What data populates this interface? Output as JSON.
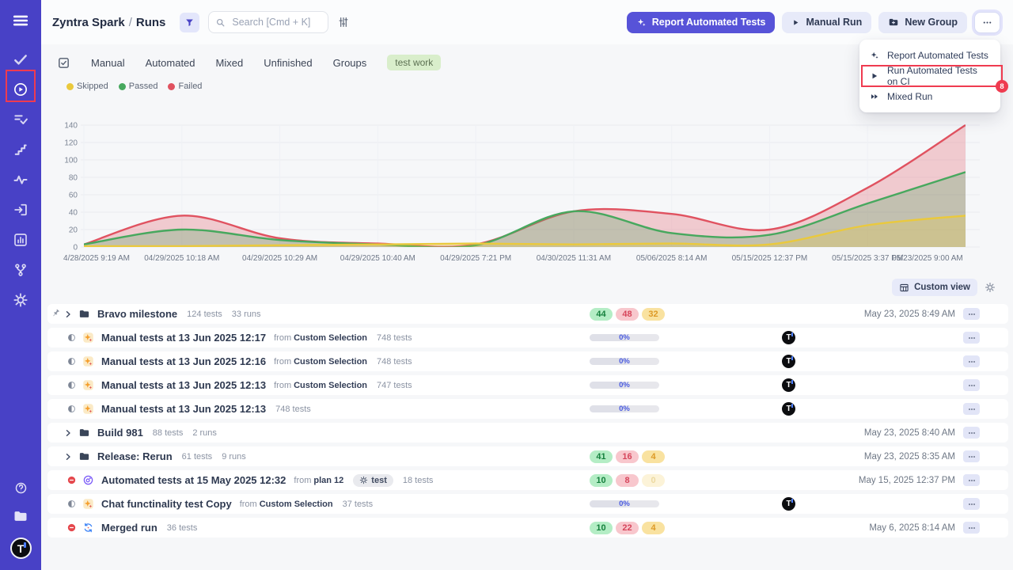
{
  "colors": {
    "sidebar": "#4841c6",
    "accent": "#5753d8",
    "annotation": "#ef3b50",
    "passed": "#47a85e",
    "failed": "#e05260",
    "skipped": "#eac93d"
  },
  "sidebar": {
    "avatar": "T",
    "items": [
      {
        "id": "tests",
        "icon": "check-icon"
      },
      {
        "id": "runs",
        "icon": "play-circle-icon",
        "active": true,
        "annotated": true
      },
      {
        "id": "plans",
        "icon": "list-check-icon"
      },
      {
        "id": "milestones",
        "icon": "stairs-icon"
      },
      {
        "id": "pulse",
        "icon": "activity-icon"
      },
      {
        "id": "imports",
        "icon": "import-icon"
      },
      {
        "id": "analytics",
        "icon": "bar-chart-icon"
      },
      {
        "id": "traceability",
        "icon": "branch-icon"
      },
      {
        "id": "settings",
        "icon": "gear-icon"
      }
    ]
  },
  "header": {
    "project": "Zyntra Spark",
    "separator": "/",
    "page": "Runs",
    "search_placeholder": "Search [Cmd + K]",
    "report_button": "Report Automated Tests",
    "manual_run_button": "Manual Run",
    "new_group_button": "New Group"
  },
  "menu": {
    "items": [
      {
        "label": "Report Automated Tests",
        "icon": "sparkle-icon"
      },
      {
        "label": "Run Automated Tests on CI",
        "icon": "play-icon",
        "annotated": true,
        "annotation_badge": "8"
      },
      {
        "label": "Mixed Run",
        "icon": "fast-forward-icon"
      }
    ]
  },
  "tabs": {
    "items": [
      "Manual",
      "Automated",
      "Mixed",
      "Unfinished",
      "Groups"
    ],
    "active_filter": "test work"
  },
  "legend": [
    {
      "label": "Skipped",
      "color": "#eac93d"
    },
    {
      "label": "Passed",
      "color": "#47a85e"
    },
    {
      "label": "Failed",
      "color": "#e05260"
    }
  ],
  "chart_data": {
    "type": "area",
    "title": "",
    "xlabel": "",
    "ylabel": "",
    "ylim": [
      0,
      140
    ],
    "yticks": [
      0,
      20,
      40,
      60,
      80,
      100,
      120,
      140
    ],
    "grid": true,
    "legend_position": "top-left",
    "x_labels": [
      "4/28/2025 9:19 AM",
      "04/29/2025 10:18 AM",
      "04/29/2025 10:29 AM",
      "04/29/2025 10:40 AM",
      "04/29/2025 7:21 PM",
      "04/30/2025 11:31 AM",
      "05/06/2025 8:14 AM",
      "05/15/2025 12:37 PM",
      "05/15/2025 3:37 PM",
      "05/23/2025 9:00 AM"
    ],
    "series": [
      {
        "name": "Failed",
        "color": "#e05260",
        "values": [
          3,
          36,
          10,
          4,
          3,
          41,
          38,
          20,
          68,
          140
        ]
      },
      {
        "name": "Passed",
        "color": "#47a85e",
        "values": [
          3,
          20,
          8,
          3,
          2,
          41,
          16,
          14,
          50,
          86
        ]
      },
      {
        "name": "Skipped",
        "color": "#eac93d",
        "values": [
          1,
          1,
          2,
          3,
          4,
          3,
          4,
          3,
          25,
          36
        ]
      }
    ]
  },
  "view_bar": {
    "custom_view_label": "Custom view"
  },
  "table": {
    "rows": [
      {
        "type": "group",
        "pinned": true,
        "name": "Bravo milestone",
        "meta": [
          "124 tests",
          "33 runs"
        ],
        "results": [
          {
            "kind": "passed",
            "value": "44"
          },
          {
            "kind": "failed",
            "value": "48"
          },
          {
            "kind": "skipped",
            "value": "32"
          }
        ],
        "date": "May 23, 2025 8:49 AM"
      },
      {
        "type": "run",
        "status_icon": "globe-icon",
        "type_icon": "manual-run-icon",
        "name": "Manual tests at 13 Jun 2025 12:17",
        "from_label": "from",
        "from_value": "Custom Selection",
        "tests": "748 tests",
        "progress": "0%",
        "assignee": "T"
      },
      {
        "type": "run",
        "status_icon": "globe-icon",
        "type_icon": "manual-run-icon",
        "name": "Manual tests at 13 Jun 2025 12:16",
        "from_label": "from",
        "from_value": "Custom Selection",
        "tests": "748 tests",
        "progress": "0%",
        "assignee": "T"
      },
      {
        "type": "run",
        "status_icon": "globe-icon",
        "type_icon": "manual-run-icon",
        "name": "Manual tests at 13 Jun 2025 12:13",
        "from_label": "from",
        "from_value": "Custom Selection",
        "tests": "747 tests",
        "progress": "0%",
        "assignee": "T"
      },
      {
        "type": "run",
        "status_icon": "globe-icon",
        "type_icon": "manual-run-icon",
        "name": "Manual tests at 13 Jun 2025 12:13",
        "tests": "748 tests",
        "progress": "0%",
        "assignee": "T"
      },
      {
        "type": "group",
        "name": "Build 981",
        "meta": [
          "88 tests",
          "2 runs"
        ],
        "date": "May 23, 2025 8:40 AM"
      },
      {
        "type": "group",
        "name": "Release: Rerun",
        "meta": [
          "61 tests",
          "9 runs"
        ],
        "results": [
          {
            "kind": "passed",
            "value": "41"
          },
          {
            "kind": "failed",
            "value": "16"
          },
          {
            "kind": "skipped",
            "value": "4"
          }
        ],
        "date": "May 23, 2025 8:35 AM"
      },
      {
        "type": "run",
        "status_icon": "blocked-icon",
        "type_icon": "automated-run-icon",
        "name": "Automated tests at 15 May 2025 12:32",
        "from_label": "from",
        "from_value": "plan 12",
        "tag": "test",
        "tests": "18 tests",
        "results": [
          {
            "kind": "passed",
            "value": "10"
          },
          {
            "kind": "failed",
            "value": "8"
          },
          {
            "kind": "skipped",
            "value": "0",
            "faded": true
          }
        ],
        "date": "May 15, 2025 12:37 PM"
      },
      {
        "type": "run",
        "status_icon": "globe-icon",
        "type_icon": "manual-run-icon",
        "name": "Chat functinality test Copy",
        "from_label": "from",
        "from_value": "Custom Selection",
        "tests": "37 tests",
        "progress": "0%",
        "assignee": "T"
      },
      {
        "type": "run",
        "status_icon": "blocked-icon",
        "type_icon": "merged-run-icon",
        "name": "Merged run",
        "tests": "36 tests",
        "results": [
          {
            "kind": "passed",
            "value": "10"
          },
          {
            "kind": "failed",
            "value": "22"
          },
          {
            "kind": "skipped",
            "value": "4"
          }
        ],
        "date": "May 6, 2025 8:14 AM"
      }
    ]
  }
}
